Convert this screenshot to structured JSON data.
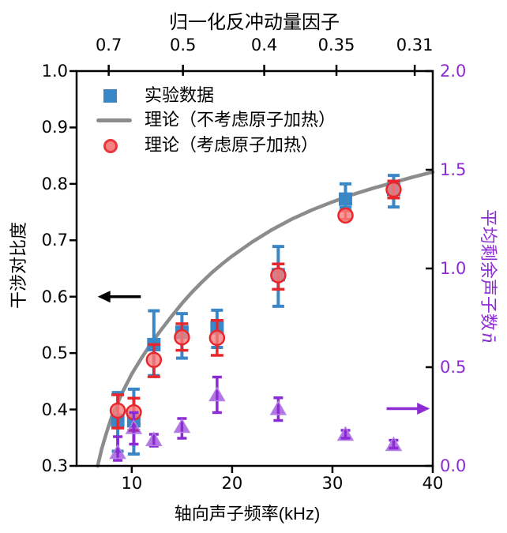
{
  "figure": {
    "top_axis": {
      "title": "归一化反冲动量因子",
      "tick_labels": [
        "0.7",
        "0.5",
        "0.4",
        "0.35",
        "0.31"
      ],
      "tick_freqs_kHz": [
        7.7,
        15.1,
        23.2,
        30.4,
        38.2
      ]
    },
    "bottom_axis": {
      "title": "轴向声子频率(kHz)",
      "tick_labels": [
        "10",
        "20",
        "30",
        "40"
      ],
      "tick_values": [
        10,
        20,
        30,
        40
      ]
    },
    "left_axis": {
      "title": "干涉对比度",
      "tick_labels": [
        "1.0",
        "0.9",
        "0.8",
        "0.7",
        "0.6",
        "0.5",
        "0.4",
        "0.3"
      ],
      "tick_values": [
        1.0,
        0.9,
        0.8,
        0.7,
        0.6,
        0.5,
        0.4,
        0.3
      ]
    },
    "right_axis": {
      "title": "平均剩余声子数",
      "symbol": "n̄",
      "tick_labels": [
        "2.0",
        "1.5",
        "1.0",
        "0.5",
        "0.0"
      ],
      "tick_values": [
        2.0,
        1.5,
        1.0,
        0.5,
        0.0
      ]
    },
    "legend": {
      "items": [
        {
          "label": "实验数据",
          "marker": "square",
          "color": "#3A87C8"
        },
        {
          "label": "理论（不考虑原子加热）",
          "marker": "line",
          "color": "#8C8C8C"
        },
        {
          "label": "理论（考虑原子加热）",
          "marker": "circle",
          "color": "#E8272C"
        }
      ]
    }
  },
  "chart_data": {
    "type": "scatter",
    "title": "",
    "xlabel": "轴向声子频率(kHz)",
    "xlabel_top": "归一化反冲动量因子",
    "ylabel_left": "干涉对比度",
    "ylabel_right": "平均剩余声子数n̄",
    "xlim": [
      4.5,
      40
    ],
    "ylim_left": [
      0.3,
      1.0
    ],
    "ylim_right": [
      0.0,
      2.0
    ],
    "grid": false,
    "legend_position": "upper-left",
    "x_kHz": [
      8.6,
      10.2,
      12.2,
      15.0,
      18.5,
      24.6,
      31.3,
      36.1
    ],
    "series": [
      {
        "name": "实验数据",
        "axis": "left",
        "marker": "square",
        "color": "#3A87C8",
        "y": [
          0.381,
          0.38,
          0.515,
          0.537,
          0.545,
          0.639,
          0.773,
          0.79
        ],
        "y_lo": [
          0.326,
          0.321,
          0.46,
          0.491,
          0.51,
          0.583,
          0.758,
          0.759
        ],
        "y_hi": [
          0.43,
          0.436,
          0.575,
          0.57,
          0.576,
          0.689,
          0.8,
          0.815
        ]
      },
      {
        "name": "理论（考虑原子加热）",
        "axis": "left",
        "marker": "circle",
        "color": "#E8272C",
        "y": [
          0.398,
          0.395,
          0.488,
          0.528,
          0.527,
          0.638,
          0.744,
          0.79
        ],
        "y_lo": [
          0.367,
          0.363,
          0.458,
          0.505,
          0.496,
          0.613,
          0.737,
          0.775
        ],
        "y_hi": [
          0.426,
          0.42,
          0.515,
          0.552,
          0.558,
          0.658,
          0.752,
          0.805
        ]
      },
      {
        "name": "平均剩余声子数",
        "axis": "right",
        "marker": "triangle",
        "color": "#8C2BD6",
        "y": [
          0.068,
          0.194,
          0.133,
          0.2,
          0.36,
          0.29,
          0.16,
          0.108
        ],
        "y_lo": [
          0.028,
          0.11,
          0.1,
          0.14,
          0.27,
          0.23,
          0.14,
          0.09
        ],
        "y_hi": [
          0.148,
          0.27,
          0.16,
          0.24,
          0.45,
          0.345,
          0.18,
          0.13
        ]
      }
    ],
    "theory_curve": {
      "name": "理论（不考虑原子加热）",
      "axis": "left",
      "color": "#8C8C8C",
      "x": [
        6.6,
        7,
        7.5,
        8,
        9,
        10,
        11,
        12,
        13,
        14,
        15,
        16,
        17,
        18,
        19,
        20,
        22,
        24,
        26,
        28,
        30,
        32,
        34,
        36,
        38,
        40
      ],
      "y": [
        0.3,
        0.33,
        0.36,
        0.387,
        0.428,
        0.463,
        0.492,
        0.519,
        0.543,
        0.566,
        0.588,
        0.608,
        0.626,
        0.643,
        0.658,
        0.672,
        0.697,
        0.719,
        0.738,
        0.754,
        0.768,
        0.781,
        0.792,
        0.802,
        0.812,
        0.821
      ]
    },
    "annotations": {
      "left_arrow": {
        "axis": "left",
        "value": 0.6,
        "x_from_kHz": 10.9,
        "x_to_kHz": 6.6,
        "direction": "left",
        "color": "#000000"
      },
      "right_arrow": {
        "axis": "right",
        "value": 0.29,
        "x_from_kHz": 35.4,
        "x_to_kHz": 39.7,
        "direction": "right",
        "color": "#8C2BD6"
      }
    }
  },
  "colors": {
    "blue": "#3A87C8",
    "red_edge": "#E8272C",
    "red_fill": "#F58080",
    "gray": "#8C8C8C",
    "purple": "#8C2BD6",
    "axis": "#000000"
  }
}
